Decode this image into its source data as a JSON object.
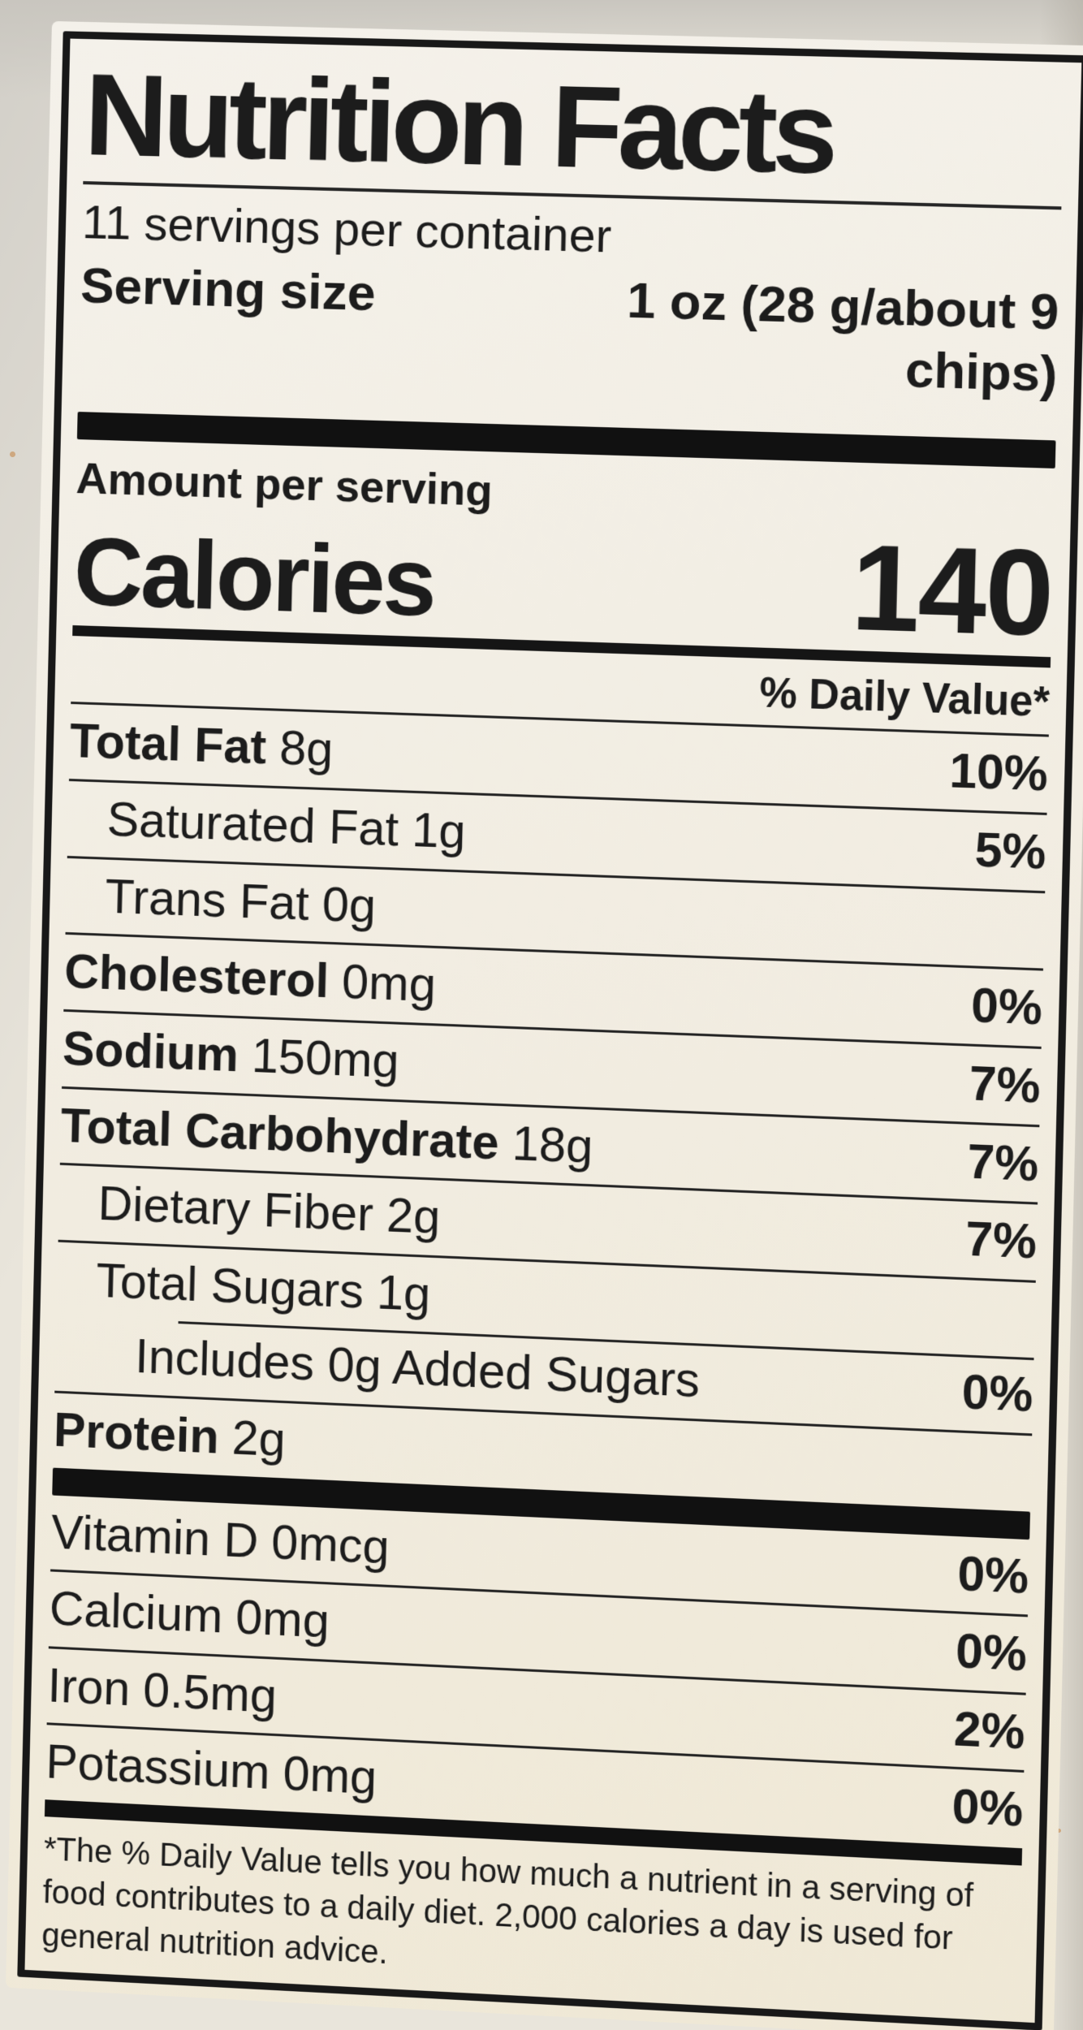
{
  "photo": {
    "background_color": "#e9e5db",
    "paper_color": "#f2efe6",
    "ink_color": "#1c1c1c",
    "bar_color": "#111111"
  },
  "label": {
    "title": "Nutrition Facts",
    "servings_per_container": "11 servings per container",
    "serving_size_label": "Serving size",
    "serving_size_value": "1 oz (28 g/about 9 chips)",
    "amount_per_serving": "Amount per serving",
    "calories_label": "Calories",
    "calories_value": "140",
    "daily_value_header": "% Daily Value*",
    "nutrients": [
      {
        "name": "Total Fat",
        "amount": "8g",
        "dv": "10%",
        "bold": true,
        "indent": 0
      },
      {
        "name": "Saturated Fat",
        "amount": "1g",
        "dv": "5%",
        "bold": false,
        "indent": 1
      },
      {
        "name": "Trans Fat",
        "amount": "0g",
        "dv": "",
        "bold": false,
        "indent": 1
      },
      {
        "name": "Cholesterol",
        "amount": "0mg",
        "dv": "0%",
        "bold": true,
        "indent": 0
      },
      {
        "name": "Sodium",
        "amount": "150mg",
        "dv": "7%",
        "bold": true,
        "indent": 0
      },
      {
        "name": "Total Carbohydrate",
        "amount": "18g",
        "dv": "7%",
        "bold": true,
        "indent": 0
      },
      {
        "name": "Dietary Fiber",
        "amount": "2g",
        "dv": "7%",
        "bold": false,
        "indent": 1
      },
      {
        "name": "Total Sugars",
        "amount": "1g",
        "dv": "",
        "bold": false,
        "indent": 1
      },
      {
        "name": "Includes 0g Added Sugars",
        "amount": "",
        "dv": "0%",
        "bold": false,
        "indent": 2,
        "indent_rule": true
      },
      {
        "name": "Protein",
        "amount": "2g",
        "dv": "",
        "bold": true,
        "indent": 0
      }
    ],
    "vitamins": [
      {
        "name": "Vitamin D",
        "amount": "0mcg",
        "dv": "0%"
      },
      {
        "name": "Calcium",
        "amount": "0mg",
        "dv": "0%"
      },
      {
        "name": "Iron",
        "amount": "0.5mg",
        "dv": "2%"
      },
      {
        "name": "Potassium",
        "amount": "0mg",
        "dv": "0%"
      }
    ],
    "footnote": "*The % Daily Value tells you how much a nutrient in a serving of food contributes to a daily diet. 2,000 calories a day is used for general nutrition advice."
  }
}
